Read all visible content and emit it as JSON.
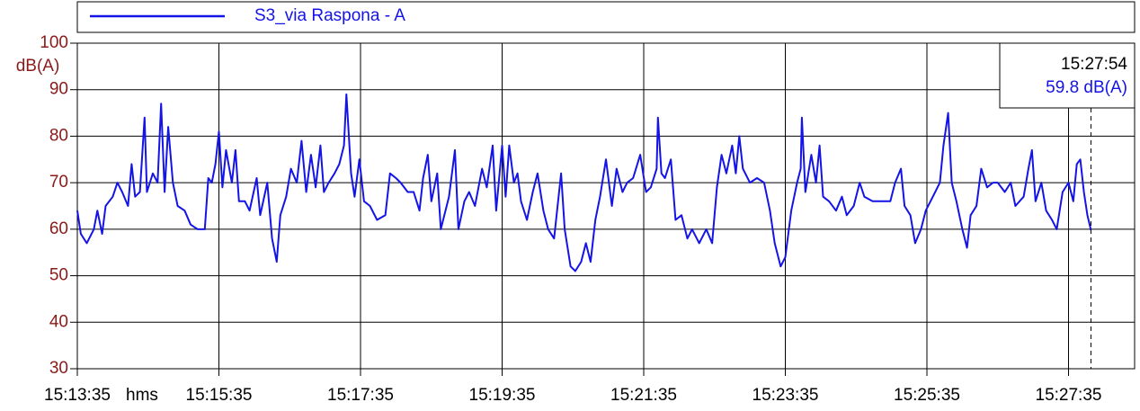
{
  "chart_data": {
    "type": "line",
    "legend": "S3_via Raspona - A",
    "y_label": "dB(A)",
    "x_unit": "hms",
    "ylim": [
      30,
      100
    ],
    "yticks": [
      30,
      40,
      50,
      60,
      70,
      80,
      90,
      100
    ],
    "xlim": [
      "15:13:35",
      "15:28:31"
    ],
    "xticks": [
      "15:13:35",
      "15:15:35",
      "15:17:35",
      "15:19:35",
      "15:21:35",
      "15:23:35",
      "15:25:35",
      "15:27:35"
    ],
    "grid": true,
    "cursor": {
      "time": "15:27:54",
      "value": 59.8,
      "value_label": "59.8 dB(A)"
    },
    "series": [
      {
        "name": "S3_via Raspona - A",
        "color": "#1414e6",
        "x": [
          "15:13:35",
          "15:13:38",
          "15:13:43",
          "15:13:49",
          "15:13:52",
          "15:13:56",
          "15:13:59",
          "15:14:05",
          "15:14:09",
          "15:14:13",
          "15:14:18",
          "15:14:21",
          "15:14:24",
          "15:14:28",
          "15:14:32",
          "15:14:34",
          "15:14:39",
          "15:14:43",
          "15:14:46",
          "15:14:49",
          "15:14:52",
          "15:14:56",
          "15:15:00",
          "15:15:06",
          "15:15:11",
          "15:15:17",
          "15:15:23",
          "15:15:26",
          "15:15:29",
          "15:15:32",
          "15:15:35",
          "15:15:38",
          "15:15:41",
          "15:15:46",
          "15:15:49",
          "15:15:52",
          "15:15:57",
          "15:16:01",
          "15:16:07",
          "15:16:10",
          "15:16:16",
          "15:16:20",
          "15:16:24",
          "15:16:27",
          "15:16:32",
          "15:16:36",
          "15:16:41",
          "15:16:45",
          "15:16:49",
          "15:16:53",
          "15:16:57",
          "15:17:01",
          "15:17:04",
          "15:17:08",
          "15:17:13",
          "15:17:17",
          "15:17:21",
          "15:17:23",
          "15:17:27",
          "15:17:30",
          "15:17:34",
          "15:17:38",
          "15:17:43",
          "15:17:49",
          "15:17:56",
          "15:18:00",
          "15:18:05",
          "15:18:09",
          "15:18:15",
          "15:18:20",
          "15:18:25",
          "15:18:28",
          "15:18:32",
          "15:18:35",
          "15:18:40",
          "15:18:43",
          "15:18:47",
          "15:18:50",
          "15:18:55",
          "15:18:58",
          "15:19:03",
          "15:19:07",
          "15:19:12",
          "15:19:18",
          "15:19:22",
          "15:19:27",
          "15:19:30",
          "15:19:35",
          "15:19:38",
          "15:19:41",
          "15:19:45",
          "15:19:48",
          "15:19:51",
          "15:19:56",
          "15:20:01",
          "15:20:05",
          "15:20:10",
          "15:20:14",
          "15:20:19",
          "15:20:25",
          "15:20:28",
          "15:20:33",
          "15:20:37",
          "15:20:42",
          "15:20:46",
          "15:20:50",
          "15:20:54",
          "15:20:58",
          "15:21:03",
          "15:21:08",
          "15:21:12",
          "15:21:17",
          "15:21:21",
          "15:21:26",
          "15:21:32",
          "15:21:37",
          "15:21:41",
          "15:21:46",
          "15:21:47",
          "15:21:50",
          "15:21:53",
          "15:21:58",
          "15:22:02",
          "15:22:07",
          "15:22:12",
          "15:22:16",
          "15:22:22",
          "15:22:28",
          "15:22:33",
          "15:22:37",
          "15:22:41",
          "15:22:45",
          "15:22:50",
          "15:22:53",
          "15:22:56",
          "15:22:59",
          "15:23:05",
          "15:23:11",
          "15:23:17",
          "15:23:22",
          "15:23:26",
          "15:23:31",
          "15:23:35",
          "15:23:40",
          "15:23:45",
          "15:23:48",
          "15:23:49",
          "15:23:52",
          "15:23:57",
          "15:24:01",
          "15:24:04",
          "15:24:07",
          "15:24:12",
          "15:24:18",
          "15:24:23",
          "15:24:27",
          "15:24:33",
          "15:24:38",
          "15:24:42",
          "15:24:49",
          "15:24:56",
          "15:25:04",
          "15:25:08",
          "15:25:13",
          "15:25:16",
          "15:25:21",
          "15:25:25",
          "15:25:30",
          "15:25:34",
          "15:25:40",
          "15:25:46",
          "15:25:49",
          "15:25:53",
          "15:25:56",
          "15:26:00",
          "15:26:05",
          "15:26:09",
          "15:26:12",
          "15:26:17",
          "15:26:21",
          "15:26:26",
          "15:26:31",
          "15:26:35",
          "15:26:41",
          "15:26:46",
          "15:26:50",
          "15:26:57",
          "15:27:01",
          "15:27:04",
          "15:27:07",
          "15:27:12",
          "15:27:16",
          "15:27:21",
          "15:27:25",
          "15:27:30",
          "15:27:35",
          "15:27:39",
          "15:27:42",
          "15:27:45",
          "15:27:48",
          "15:27:51",
          "15:27:54"
        ],
        "values": [
          64,
          59,
          57,
          60,
          64,
          59,
          65,
          67,
          70,
          68,
          65,
          74,
          67,
          68,
          84,
          68,
          72,
          70,
          87,
          68,
          82,
          70,
          65,
          64,
          61,
          60,
          60,
          71,
          70,
          74,
          81,
          69,
          77,
          70,
          77,
          66,
          66,
          64,
          71,
          63,
          70,
          58,
          53,
          63,
          67,
          73,
          70,
          79,
          68,
          76,
          69,
          78,
          68,
          70,
          72,
          74,
          78,
          89,
          72,
          67,
          75,
          66,
          65,
          62,
          63,
          72,
          71,
          70,
          68,
          68,
          64,
          71,
          76,
          66,
          72,
          60,
          64,
          67,
          77,
          60,
          66,
          68,
          65,
          73,
          69,
          78,
          64,
          78,
          67,
          78,
          70,
          72,
          66,
          62,
          68,
          72,
          64,
          60,
          58,
          72,
          60,
          52,
          51,
          53,
          57,
          53,
          62,
          67,
          75,
          65,
          73,
          68,
          70,
          71,
          76,
          68,
          69,
          73,
          84,
          72,
          71,
          75,
          62,
          63,
          58,
          60,
          57,
          60,
          57,
          69,
          76,
          72,
          78,
          72,
          80,
          73,
          70,
          71,
          70,
          64,
          57,
          52,
          54,
          64,
          70,
          73,
          84,
          68,
          76,
          70,
          78,
          67,
          66,
          64,
          67,
          63,
          65,
          70,
          67,
          66,
          66,
          66,
          70,
          73,
          65,
          63,
          57,
          60,
          64,
          67,
          70,
          78,
          85,
          70,
          66,
          60,
          56,
          63,
          65,
          73,
          69,
          70,
          70,
          68,
          70,
          65,
          67,
          73,
          77,
          66,
          70,
          64,
          62,
          60,
          68,
          70,
          66,
          74,
          75,
          68,
          63,
          59.8
        ]
      }
    ]
  }
}
